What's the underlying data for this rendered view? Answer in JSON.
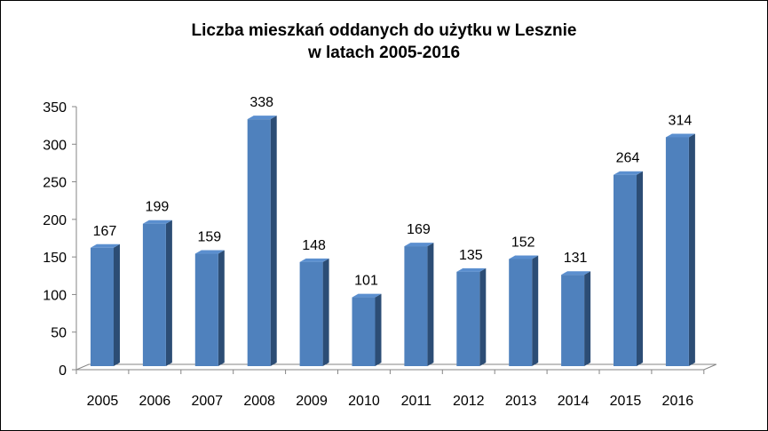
{
  "chart_data": {
    "type": "bar",
    "title": [
      "Liczba mieszkań oddanych do użytku w Lesznie",
      "w latach 2005-2016"
    ],
    "categories": [
      "2005",
      "2006",
      "2007",
      "2008",
      "2009",
      "2010",
      "2011",
      "2012",
      "2013",
      "2014",
      "2015",
      "2016"
    ],
    "values": [
      167,
      199,
      159,
      338,
      148,
      101,
      169,
      135,
      152,
      131,
      264,
      314
    ],
    "ylim": [
      0,
      350
    ],
    "yticks": [
      0,
      50,
      100,
      150,
      200,
      250,
      300,
      350
    ],
    "data_labels": true,
    "legend": "none",
    "grid": false,
    "bar_style": "3d",
    "colors": {
      "bar_front": "#4f81bd",
      "bar_side": "#2c4d75",
      "bar_top": "#5b8fcf",
      "axis": "#868686",
      "text": "#000000"
    }
  }
}
